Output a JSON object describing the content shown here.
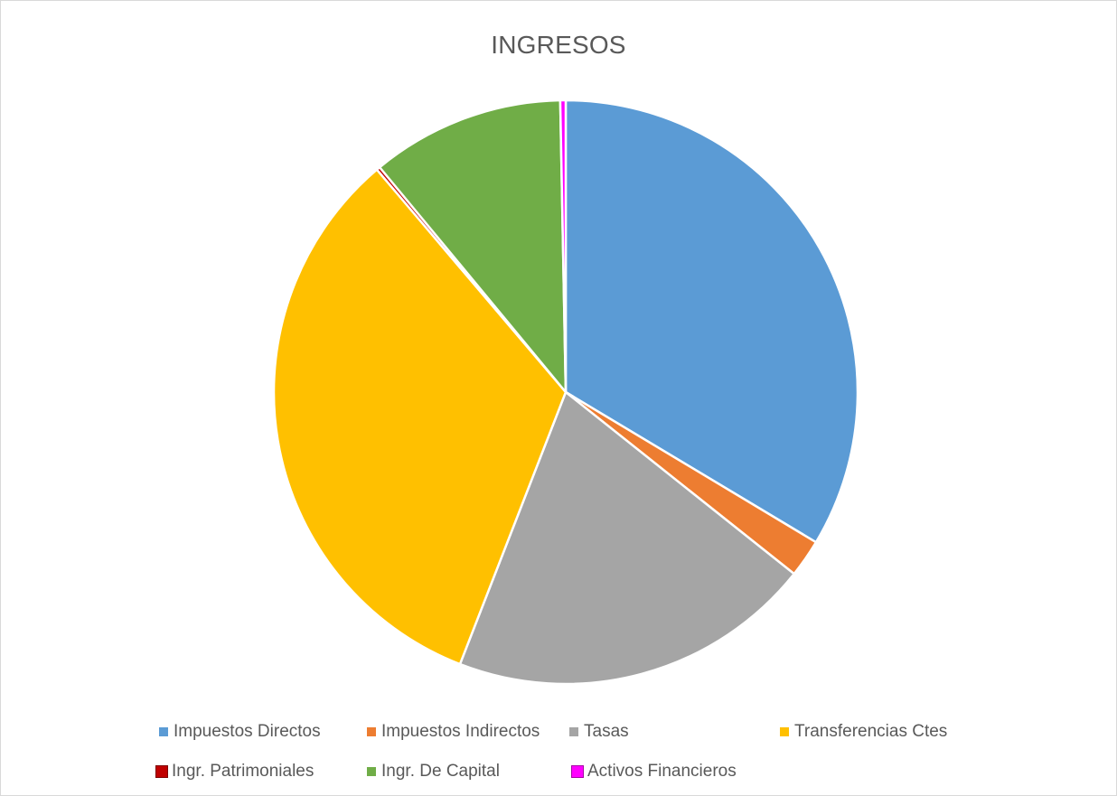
{
  "chart_data": {
    "type": "pie",
    "title": "INGRESOS",
    "start_angle_deg": 0,
    "direction": "clockwise",
    "slices": [
      {
        "label": "Impuestos Directos",
        "value": 33.6,
        "color": "#5B9BD5"
      },
      {
        "label": "Impuestos Indirectos",
        "value": 2.1,
        "color": "#ED7D31"
      },
      {
        "label": "Tasas",
        "value": 20.2,
        "color": "#A5A5A5"
      },
      {
        "label": "Transferencias Ctes",
        "value": 32.9,
        "color": "#FFC000"
      },
      {
        "label": "Ingr. Patrimoniales",
        "value": 0.2,
        "color": "#C00000"
      },
      {
        "label": "Ingr. De Capital",
        "value": 10.7,
        "color": "#70AD47"
      },
      {
        "label": "Activos Financieros",
        "value": 0.3,
        "color": "#FF00FF"
      }
    ],
    "legend_position": "bottom",
    "data_labels": false
  }
}
